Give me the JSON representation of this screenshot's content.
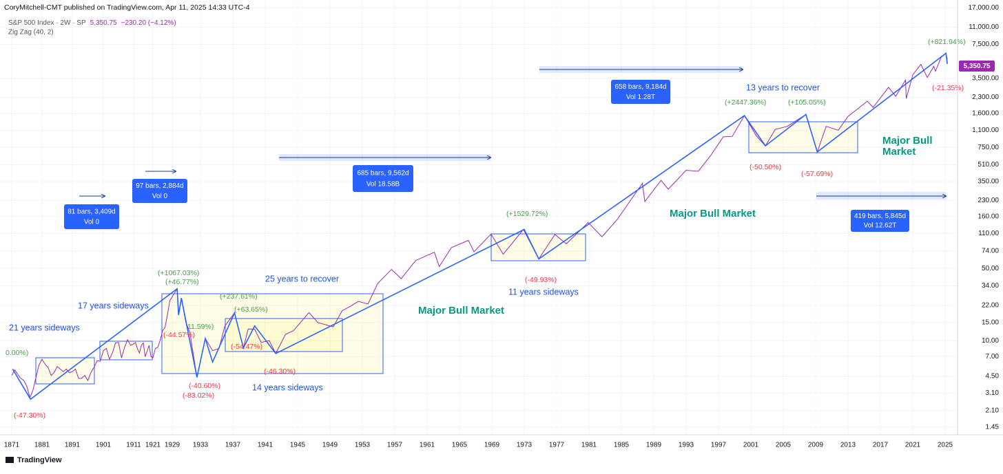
{
  "header": {
    "publisher": "CoryMitchell-CMT published on TradingView.com, Apr 11, 2025 14:33 UTC-4",
    "symbol": "S&P 500 Index · 2W · SP",
    "price": "5,350.75",
    "change": "−230.20 (−4.12%)",
    "indicator": "Zig Zag (40, 2)"
  },
  "chart_data": {
    "type": "line",
    "log_scale": true,
    "grid": true,
    "xticks": [
      1871,
      1881,
      1891,
      1901,
      1911,
      1921,
      1929,
      1933,
      1937,
      1941,
      1945,
      1949,
      1953,
      1957,
      1961,
      1965,
      1969,
      1973,
      1977,
      1981,
      1985,
      1989,
      1993,
      1997,
      2001,
      2005,
      2009,
      2013,
      2017,
      2021,
      2025
    ],
    "ylim": [
      1.22,
      20200
    ],
    "yticks": [
      1.45,
      {
        "value": 2.1,
        "label": "2.10"
      },
      {
        "value": 3.1,
        "label": "3.10"
      },
      {
        "value": 4.5,
        "label": "4.50"
      },
      {
        "value": 7,
        "label": "7.00"
      },
      {
        "value": 10,
        "label": "10.00"
      },
      {
        "value": 15,
        "label": "15.00"
      },
      {
        "value": 22,
        "label": "22.00"
      },
      {
        "value": 34,
        "label": "34.00"
      },
      {
        "value": 50,
        "label": "50.00"
      },
      {
        "value": 74,
        "label": "74.00"
      },
      {
        "value": 110,
        "label": "110.00"
      },
      {
        "value": 160,
        "label": "160.00"
      },
      {
        "value": 230,
        "label": "230.00"
      },
      {
        "value": 350,
        "label": "350.00"
      },
      {
        "value": 510,
        "label": "510.00"
      },
      {
        "value": 750,
        "label": "750.00"
      },
      {
        "value": 1100,
        "label": "1,100.00"
      },
      {
        "value": 1600,
        "label": "1,600.00"
      },
      {
        "value": 2300,
        "label": "2,300.00"
      },
      {
        "value": 3500,
        "label": "3,500.00"
      },
      {
        "value": 7500,
        "label": "7,500.00"
      },
      {
        "value": 11000,
        "label": "11,000.00"
      },
      {
        "value": 17000,
        "label": "17,000.00"
      }
    ],
    "series": [
      {
        "color": "#9c27b0",
        "x": [
          1871,
          1872,
          1873,
          1874,
          1875,
          1876,
          1877,
          1878,
          1879,
          1880,
          1881,
          1882,
          1883,
          1884,
          1885,
          1886,
          1887,
          1888,
          1889,
          1890,
          1891,
          1892,
          1893,
          1894,
          1895,
          1896,
          1897,
          1898,
          1899,
          1900,
          1901,
          1902,
          1903,
          1904,
          1905,
          1906,
          1907,
          1908,
          1909,
          1910,
          1911,
          1912,
          1913,
          1914,
          1915,
          1916,
          1917,
          1918,
          1919,
          1920,
          1921,
          1922,
          1923,
          1924,
          1925,
          1926,
          1927,
          1928,
          1929.7,
          1929.9,
          1930.3,
          1930.9,
          1931.5,
          1932.5,
          1933.6,
          1934.5,
          1935.3,
          1936.0,
          1937.2,
          1938.3,
          1938.9,
          1939.7,
          1940.5,
          1941.5,
          1942.3,
          1943.5,
          1944.5,
          1946.4,
          1947.5,
          1949.4,
          1950.5,
          1951.5,
          1952.5,
          1953.7,
          1954.9,
          1956.6,
          1957.8,
          1959.6,
          1961.9,
          1962.5,
          1964.0,
          1966.1,
          1966.8,
          1968.9,
          1970.4,
          1972.9,
          1974.8,
          1976.8,
          1978.2,
          1980.9,
          1982.6,
          1984.5,
          1987.6,
          1987.9,
          1989.9,
          1990.8,
          1993.0,
          1994.5,
          1996.0,
          1997.6,
          1998.7,
          2000.2,
          2001.7,
          2002.8,
          2004.0,
          2005.5,
          2007.8,
          2009.2,
          2010.3,
          2011.8,
          2013.0,
          2015.4,
          2016.1,
          2018.0,
          2018.9,
          2020.1,
          2020.2,
          2021.0,
          2022.0,
          2022.8,
          2023.6,
          2023.8,
          2024.5,
          2025.1,
          2025.27
        ],
        "values": [
          4.6,
          5.2,
          4.7,
          4.3,
          4.1,
          3.6,
          2.8,
          3.3,
          4.4,
          5.8,
          6.6,
          5.9,
          5.5,
          4.6,
          4.9,
          5.6,
          5.3,
          5.0,
          5.3,
          4.9,
          5.0,
          5.3,
          4.3,
          4.3,
          4.6,
          4.1,
          4.9,
          5.5,
          6.4,
          6.3,
          8.0,
          8.4,
          6.6,
          7.6,
          9.5,
          9.6,
          6.8,
          8.6,
          10.2,
          9.0,
          9.3,
          9.6,
          8.3,
          7.6,
          9.0,
          9.5,
          7.0,
          7.9,
          9.0,
          7.0,
          6.8,
          8.4,
          8.6,
          10.1,
          12.5,
          13.4,
          17.7,
          24.4,
          31.9,
          17.7,
          25.9,
          15.3,
          12.0,
          4.4,
          10.5,
          8.0,
          8.4,
          13.8,
          18.6,
          8.5,
          13.0,
          12.9,
          9.6,
          10.0,
          7.5,
          11.5,
          12.5,
          18.7,
          15.0,
          13.6,
          19.5,
          21.5,
          24.0,
          22.7,
          35.9,
          49.0,
          39.9,
          60.0,
          72.0,
          52.3,
          80,
          94,
          73,
          108,
          69,
          120,
          62,
          107,
          87,
          140,
          102,
          150,
          336,
          224,
          359,
          295,
          450,
          440,
          620,
          950,
          960,
          1527,
          965,
          777,
          1120,
          1200,
          1565,
          677,
          1200,
          1100,
          1500,
          2110,
          1830,
          2870,
          2350,
          3380,
          2237,
          3800,
          4790,
          3580,
          4580,
          4110,
          5600,
          6144,
          5350.75
        ]
      },
      {
        "color": "#2962ff",
        "x": [
          1871.3,
          1877.2,
          1929.7,
          1929.9,
          1930.3,
          1932.5,
          1933.6,
          1934.5,
          1937.2,
          1938.3,
          1939.7,
          1942.3,
          1973.0,
          1974.8,
          2000.2,
          2002.8,
          2007.8,
          2009.2,
          2025.1,
          2025.27
        ],
        "values": [
          5.3,
          2.7,
          31.9,
          17.7,
          25.9,
          4.4,
          10.5,
          6.2,
          18.6,
          8.5,
          13.9,
          7.5,
          120,
          62,
          1527,
          777,
          1565,
          677,
          6144,
          4835
        ]
      }
    ]
  },
  "annotations": {
    "zigzag_labels": [
      "0.00%)",
      "(-47.30%)",
      "(+1067.03%)",
      "(+46.77%)",
      "(-44.57%)",
      "11.59%)",
      "(-40.60%)",
      "(-83.02%)",
      "(+237.61%)",
      "(+63.65%)",
      "(-54.47%)",
      "(-46.30%)",
      "(+1529.72%)",
      "(-49.93%)",
      "(+2447.36%)",
      "(-50.50%)",
      "(+105.05%)",
      "(-57.69%)",
      "(+821.94%)",
      "(-21.35%)"
    ],
    "notes": [
      "21 years sideways",
      "17 years sideways",
      "25 years to recover",
      "14 years sideways",
      "11 years sideways",
      "13 years to recover"
    ],
    "bull": [
      "Major Bull Market",
      "Major Bull Market",
      "Major Bull",
      "Market"
    ],
    "measures": [
      {
        "range": "81 bars, 3,409d",
        "volume": "Vol 0"
      },
      {
        "range": "97 bars, 2,884d",
        "volume": "Vol 0"
      },
      {
        "range": "685 bars, 9,562d",
        "volume": "Vol 18.58B"
      },
      {
        "range": "658 bars, 9,184d",
        "volume": "Vol 1.28T"
      },
      {
        "range": "419 bars, 5,845d",
        "volume": "Vol 12.62T"
      }
    ]
  },
  "footer": "TradingView"
}
